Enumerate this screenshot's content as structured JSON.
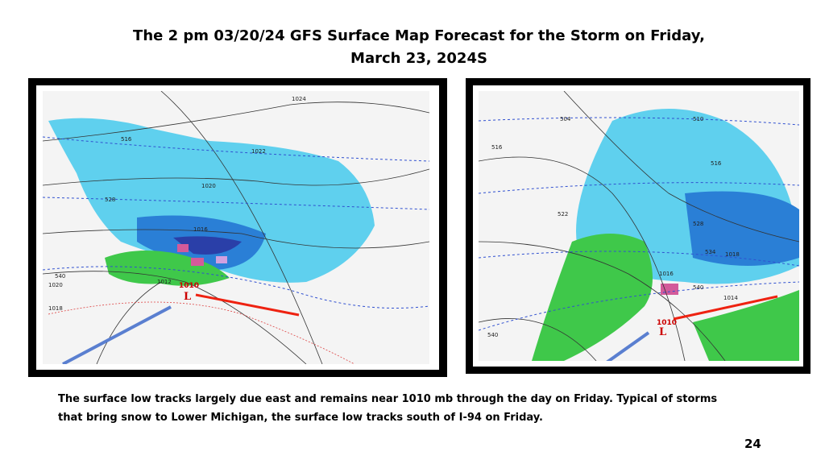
{
  "slide": {
    "title_line1": "The 2 pm 03/20/24 GFS Surface Map Forecast for the Storm on Friday,",
    "title_line2": "March 23, 2024S",
    "left_map": {
      "labels": [
        "1024",
        "516",
        "1022",
        "1020",
        "528",
        "1016",
        "540",
        "1020",
        "1018",
        "1012",
        "1010",
        "L"
      ]
    },
    "right_map": {
      "labels": [
        "504",
        "510",
        "516",
        "516",
        "522",
        "528",
        "534",
        "1018",
        "1016",
        "540",
        "1014",
        "540",
        "1010",
        "L"
      ]
    },
    "caption_line1": "The surface low tracks largely due east and remains near 1010 mb through the day on Friday. Typical of storms",
    "caption_line2": "that bring snow to Lower Michigan, the surface low tracks south of I-94  on Friday.",
    "page_number": "24"
  }
}
